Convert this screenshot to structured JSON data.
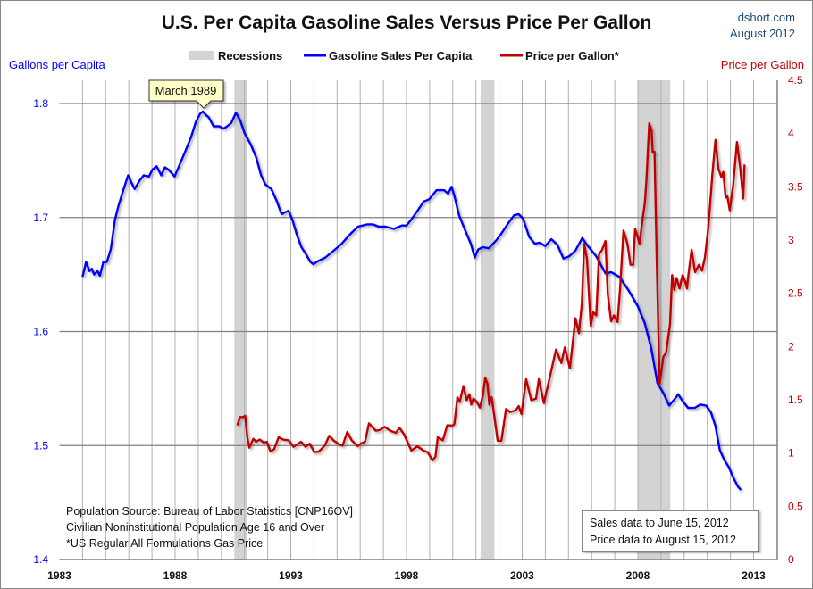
{
  "header": {
    "title": "U.S. Per Capita Gasoline Sales Versus Price Per Gallon",
    "source": "dshort.com",
    "date": "August 2012"
  },
  "colors": {
    "sales": "#0000ff",
    "price": "#c00000",
    "recession": "#d3d3d3",
    "left_axis_text": "#0000ff",
    "right_axis_text": "#c00000"
  },
  "chart_data": {
    "type": "line",
    "title": "U.S. Per Capita Gasoline Sales Versus Price Per Gallon",
    "xlabel": "",
    "ylabel_left": "Gallons per Capita",
    "ylabel_right": "Price per Gallon",
    "xlim": [
      1983,
      2014
    ],
    "ylim_left": [
      1.4,
      1.82
    ],
    "ylim_right": [
      0,
      4.5
    ],
    "x_ticks": [
      "1983",
      "1988",
      "1993",
      "1998",
      "2003",
      "2008",
      "2013"
    ],
    "y_left_ticks": [
      "1.4",
      "1.5",
      "1.6",
      "1.7",
      "1.8"
    ],
    "y_right_ticks": [
      "0",
      "0.5",
      "1",
      "1.5",
      "2",
      "2.5",
      "3",
      "3.5",
      "4",
      "4.5"
    ],
    "grid": true,
    "legend_position": "top",
    "legend": [
      "Recessions",
      "Gasoline Sales Per Capita",
      "Price per Gallon*"
    ],
    "recessions": [
      [
        1990.56,
        1991.1
      ],
      [
        2001.2,
        2001.8
      ],
      [
        2008.0,
        2009.4
      ]
    ],
    "series": [
      {
        "name": "Gasoline Sales Per Capita",
        "axis": "left",
        "points": [
          [
            1984.0,
            1.648
          ],
          [
            1984.15,
            1.661
          ],
          [
            1984.3,
            1.653
          ],
          [
            1984.4,
            1.655
          ],
          [
            1984.5,
            1.65
          ],
          [
            1984.65,
            1.653
          ],
          [
            1984.75,
            1.649
          ],
          [
            1984.9,
            1.661
          ],
          [
            1985.05,
            1.661
          ],
          [
            1985.22,
            1.672
          ],
          [
            1985.4,
            1.698
          ],
          [
            1985.55,
            1.71
          ],
          [
            1985.76,
            1.724
          ],
          [
            1985.97,
            1.737
          ],
          [
            1986.1,
            1.731
          ],
          [
            1986.25,
            1.725
          ],
          [
            1986.45,
            1.732
          ],
          [
            1986.64,
            1.737
          ],
          [
            1986.87,
            1.736
          ],
          [
            1987.02,
            1.742
          ],
          [
            1987.2,
            1.745
          ],
          [
            1987.4,
            1.737
          ],
          [
            1987.56,
            1.744
          ],
          [
            1987.72,
            1.742
          ],
          [
            1987.98,
            1.736
          ],
          [
            1988.25,
            1.749
          ],
          [
            1988.44,
            1.758
          ],
          [
            1988.7,
            1.771
          ],
          [
            1988.9,
            1.784
          ],
          [
            1989.08,
            1.791
          ],
          [
            1989.2,
            1.793
          ],
          [
            1989.33,
            1.79
          ],
          [
            1989.45,
            1.788
          ],
          [
            1989.66,
            1.78
          ],
          [
            1989.9,
            1.78
          ],
          [
            1990.1,
            1.778
          ],
          [
            1990.25,
            1.78
          ],
          [
            1990.43,
            1.783
          ],
          [
            1990.63,
            1.792
          ],
          [
            1990.82,
            1.785
          ],
          [
            1991.0,
            1.774
          ],
          [
            1991.27,
            1.764
          ],
          [
            1991.5,
            1.753
          ],
          [
            1991.72,
            1.737
          ],
          [
            1991.9,
            1.729
          ],
          [
            1992.16,
            1.725
          ],
          [
            1992.4,
            1.714
          ],
          [
            1992.6,
            1.703
          ],
          [
            1992.9,
            1.706
          ],
          [
            1993.07,
            1.698
          ],
          [
            1993.26,
            1.685
          ],
          [
            1993.46,
            1.674
          ],
          [
            1993.65,
            1.668
          ],
          [
            1993.85,
            1.661
          ],
          [
            1993.97,
            1.659
          ],
          [
            1994.2,
            1.662
          ],
          [
            1994.5,
            1.665
          ],
          [
            1994.8,
            1.67
          ],
          [
            1995.2,
            1.677
          ],
          [
            1995.6,
            1.686
          ],
          [
            1995.9,
            1.692
          ],
          [
            1996.3,
            1.694
          ],
          [
            1996.55,
            1.694
          ],
          [
            1996.8,
            1.692
          ],
          [
            1997.1,
            1.692
          ],
          [
            1997.46,
            1.69
          ],
          [
            1997.8,
            1.693
          ],
          [
            1998.0,
            1.693
          ],
          [
            1998.2,
            1.698
          ],
          [
            1998.48,
            1.706
          ],
          [
            1998.74,
            1.714
          ],
          [
            1998.98,
            1.716
          ],
          [
            1999.3,
            1.724
          ],
          [
            1999.62,
            1.724
          ],
          [
            1999.8,
            1.721
          ],
          [
            1999.95,
            1.727
          ],
          [
            2000.07,
            1.719
          ],
          [
            2000.27,
            1.702
          ],
          [
            2000.53,
            1.689
          ],
          [
            2000.78,
            1.677
          ],
          [
            2000.95,
            1.665
          ],
          [
            2001.1,
            1.672
          ],
          [
            2001.3,
            1.674
          ],
          [
            2001.56,
            1.673
          ],
          [
            2001.88,
            1.68
          ],
          [
            2002.07,
            1.685
          ],
          [
            2002.4,
            1.695
          ],
          [
            2002.65,
            1.702
          ],
          [
            2002.85,
            1.703
          ],
          [
            2003.04,
            1.699
          ],
          [
            2003.3,
            1.683
          ],
          [
            2003.55,
            1.677
          ],
          [
            2003.75,
            1.678
          ],
          [
            2004.0,
            1.675
          ],
          [
            2004.26,
            1.681
          ],
          [
            2004.52,
            1.676
          ],
          [
            2004.78,
            1.664
          ],
          [
            2005.03,
            1.666
          ],
          [
            2005.3,
            1.671
          ],
          [
            2005.6,
            1.682
          ],
          [
            2005.8,
            1.676
          ],
          [
            2006.2,
            1.666
          ],
          [
            2006.6,
            1.651
          ],
          [
            2006.85,
            1.652
          ],
          [
            2007.2,
            1.648
          ],
          [
            2007.6,
            1.636
          ],
          [
            2008.0,
            1.622
          ],
          [
            2008.3,
            1.607
          ],
          [
            2008.58,
            1.585
          ],
          [
            2008.84,
            1.555
          ],
          [
            2009.1,
            1.546
          ],
          [
            2009.35,
            1.535
          ],
          [
            2009.6,
            1.541
          ],
          [
            2009.74,
            1.545
          ],
          [
            2009.93,
            1.539
          ],
          [
            2010.17,
            1.533
          ],
          [
            2010.45,
            1.533
          ],
          [
            2010.7,
            1.536
          ],
          [
            2010.95,
            1.535
          ],
          [
            2011.16,
            1.529
          ],
          [
            2011.35,
            1.517
          ],
          [
            2011.54,
            1.496
          ],
          [
            2011.74,
            1.487
          ],
          [
            2011.93,
            1.481
          ],
          [
            2012.12,
            1.472
          ],
          [
            2012.32,
            1.464
          ],
          [
            2012.45,
            1.461
          ]
        ]
      },
      {
        "name": "Price per Gallon*",
        "axis": "right",
        "points": [
          [
            1990.69,
            1.26
          ],
          [
            1990.8,
            1.338
          ],
          [
            1990.93,
            1.338
          ],
          [
            1991.03,
            1.35
          ],
          [
            1991.12,
            1.148
          ],
          [
            1991.21,
            1.05
          ],
          [
            1991.38,
            1.134
          ],
          [
            1991.5,
            1.106
          ],
          [
            1991.66,
            1.126
          ],
          [
            1991.83,
            1.098
          ],
          [
            1991.96,
            1.106
          ],
          [
            1992.12,
            1.014
          ],
          [
            1992.28,
            1.037
          ],
          [
            1992.47,
            1.148
          ],
          [
            1992.67,
            1.126
          ],
          [
            1992.9,
            1.12
          ],
          [
            1993.12,
            1.059
          ],
          [
            1993.44,
            1.106
          ],
          [
            1993.63,
            1.059
          ],
          [
            1993.82,
            1.087
          ],
          [
            1994.02,
            1.008
          ],
          [
            1994.21,
            1.014
          ],
          [
            1994.47,
            1.07
          ],
          [
            1994.66,
            1.162
          ],
          [
            1994.86,
            1.115
          ],
          [
            1995.12,
            1.078
          ],
          [
            1995.24,
            1.07
          ],
          [
            1995.44,
            1.198
          ],
          [
            1995.63,
            1.12
          ],
          [
            1995.89,
            1.064
          ],
          [
            1996.05,
            1.092
          ],
          [
            1996.21,
            1.106
          ],
          [
            1996.38,
            1.279
          ],
          [
            1996.67,
            1.209
          ],
          [
            1996.86,
            1.218
          ],
          [
            1997.05,
            1.246
          ],
          [
            1997.31,
            1.209
          ],
          [
            1997.54,
            1.19
          ],
          [
            1997.7,
            1.237
          ],
          [
            1997.89,
            1.176
          ],
          [
            1998.21,
            1.023
          ],
          [
            1998.47,
            1.064
          ],
          [
            1998.73,
            1.023
          ],
          [
            1998.92,
            1.008
          ],
          [
            1999.12,
            0.93
          ],
          [
            1999.25,
            0.966
          ],
          [
            1999.35,
            1.148
          ],
          [
            1999.57,
            1.12
          ],
          [
            1999.76,
            1.26
          ],
          [
            2000.0,
            1.259
          ],
          [
            2000.07,
            1.273
          ],
          [
            2000.2,
            1.524
          ],
          [
            2000.3,
            1.48
          ],
          [
            2000.46,
            1.629
          ],
          [
            2000.6,
            1.497
          ],
          [
            2000.72,
            1.553
          ],
          [
            2000.8,
            1.455
          ],
          [
            2000.89,
            1.511
          ],
          [
            2001.03,
            1.483
          ],
          [
            2001.17,
            1.427
          ],
          [
            2001.3,
            1.539
          ],
          [
            2001.4,
            1.706
          ],
          [
            2001.5,
            1.651
          ],
          [
            2001.58,
            1.455
          ],
          [
            2001.68,
            1.524
          ],
          [
            2001.8,
            1.343
          ],
          [
            2001.94,
            1.115
          ],
          [
            2002.1,
            1.115
          ],
          [
            2002.3,
            1.414
          ],
          [
            2002.48,
            1.386
          ],
          [
            2002.72,
            1.4
          ],
          [
            2002.85,
            1.441
          ],
          [
            2002.97,
            1.366
          ],
          [
            2003.17,
            1.693
          ],
          [
            2003.39,
            1.497
          ],
          [
            2003.6,
            1.511
          ],
          [
            2003.72,
            1.693
          ],
          [
            2003.94,
            1.469
          ],
          [
            2004.26,
            1.776
          ],
          [
            2004.46,
            1.972
          ],
          [
            2004.69,
            1.846
          ],
          [
            2004.84,
            1.991
          ],
          [
            2005.06,
            1.795
          ],
          [
            2005.3,
            2.265
          ],
          [
            2005.45,
            2.125
          ],
          [
            2005.58,
            2.405
          ],
          [
            2005.68,
            2.964
          ],
          [
            2005.8,
            2.824
          ],
          [
            2005.96,
            2.195
          ],
          [
            2006.07,
            2.321
          ],
          [
            2006.2,
            2.293
          ],
          [
            2006.32,
            2.866
          ],
          [
            2006.45,
            2.908
          ],
          [
            2006.6,
            2.992
          ],
          [
            2006.7,
            2.489
          ],
          [
            2006.84,
            2.237
          ],
          [
            2006.97,
            2.293
          ],
          [
            2007.12,
            2.231
          ],
          [
            2007.23,
            2.544
          ],
          [
            2007.38,
            3.09
          ],
          [
            2007.55,
            2.964
          ],
          [
            2007.68,
            2.768
          ],
          [
            2007.8,
            2.768
          ],
          [
            2007.88,
            3.104
          ],
          [
            2007.96,
            3.05
          ],
          [
            2008.07,
            2.966
          ],
          [
            2008.23,
            3.244
          ],
          [
            2008.3,
            3.35
          ],
          [
            2008.37,
            3.57
          ],
          [
            2008.49,
            4.096
          ],
          [
            2008.59,
            4.03
          ],
          [
            2008.64,
            3.82
          ],
          [
            2008.72,
            3.83
          ],
          [
            2008.81,
            2.853
          ],
          [
            2008.94,
            1.651
          ],
          [
            2009.1,
            1.903
          ],
          [
            2009.22,
            1.945
          ],
          [
            2009.39,
            2.21
          ],
          [
            2009.48,
            2.671
          ],
          [
            2009.57,
            2.531
          ],
          [
            2009.67,
            2.643
          ],
          [
            2009.8,
            2.545
          ],
          [
            2009.93,
            2.671
          ],
          [
            2010.06,
            2.601
          ],
          [
            2010.12,
            2.545
          ],
          [
            2010.18,
            2.671
          ],
          [
            2010.32,
            2.908
          ],
          [
            2010.47,
            2.699
          ],
          [
            2010.64,
            2.768
          ],
          [
            2010.77,
            2.712
          ],
          [
            2010.9,
            2.838
          ],
          [
            2011.05,
            3.13
          ],
          [
            2011.22,
            3.62
          ],
          [
            2011.35,
            3.94
          ],
          [
            2011.48,
            3.67
          ],
          [
            2011.61,
            3.59
          ],
          [
            2011.69,
            3.64
          ],
          [
            2011.79,
            3.4
          ],
          [
            2011.87,
            3.41
          ],
          [
            2011.97,
            3.28
          ],
          [
            2012.12,
            3.52
          ],
          [
            2012.28,
            3.92
          ],
          [
            2012.42,
            3.68
          ],
          [
            2012.55,
            3.39
          ],
          [
            2012.61,
            3.71
          ]
        ]
      }
    ],
    "annotations": {
      "peak_callout": "March 1989",
      "notes": [
        "Population Source: Bureau of Labor Statistics [CNP16OV]",
        "Civilian Noninstitutional Population  Age 16 and Over",
        "*US Regular All Formulations Gas Price"
      ],
      "data_notes": [
        "Sales data to June 15, 2012",
        "Price data to August 15, 2012"
      ]
    }
  }
}
